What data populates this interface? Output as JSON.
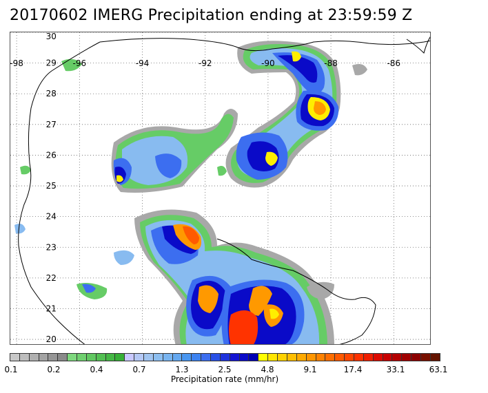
{
  "title": "20170602 IMERG Precipitation ending at 23:59:59 Z",
  "map": {
    "lon_range": [
      -98.2,
      -84.8
    ],
    "lat_range": [
      19.8,
      30.0
    ],
    "lon_labels": [
      "-98",
      "-96",
      "-94",
      "-92",
      "-90",
      "-88",
      "-86"
    ],
    "lon_values": [
      -98,
      -96,
      -94,
      -92,
      -90,
      -88,
      -86
    ],
    "lat_labels": [
      "30",
      "29",
      "28",
      "27",
      "26",
      "25",
      "24",
      "23",
      "22",
      "21",
      "20"
    ],
    "lat_values": [
      30,
      29,
      28,
      27,
      26,
      25,
      24,
      23,
      22,
      21,
      20
    ],
    "grid": "dotted",
    "coastline_color": "#000000"
  },
  "colorbar": {
    "label": "Precipitation rate (mm/hr)",
    "tick_labels": [
      "0.1",
      "0.2",
      "0.4",
      "0.7",
      "1.3",
      "2.5",
      "4.8",
      "9.1",
      "17.4",
      "33.1",
      "63.1"
    ],
    "colors": [
      "#c8c8c8",
      "#bdbdbd",
      "#b0b0b0",
      "#a3a3a3",
      "#969696",
      "#8a8a8a",
      "#7ed87e",
      "#6fd06f",
      "#61c861",
      "#53c053",
      "#45b845",
      "#37b037",
      "#c8c8ff",
      "#b4c8f5",
      "#a0c4f0",
      "#8cbef0",
      "#78b4f0",
      "#64a8f0",
      "#4896f0",
      "#3c82f0",
      "#3c6ef0",
      "#2850e6",
      "#1e32dc",
      "#1414d2",
      "#0a0ac8",
      "#0000b4",
      "#ffff00",
      "#ffe600",
      "#ffd200",
      "#ffbe00",
      "#ffaa00",
      "#ff9600",
      "#ff8200",
      "#ff6e00",
      "#ff5a00",
      "#ff4600",
      "#ff3200",
      "#f01e00",
      "#dc0a00",
      "#c80000",
      "#b40000",
      "#a00000",
      "#8c0000",
      "#781000",
      "#641400"
    ]
  },
  "features": {
    "colors": {
      "gray": "#a8a8a8",
      "green": "#66cc66",
      "light_blue": "#88bbf0",
      "blue": "#3c6ef0",
      "dark_blue": "#0a0ac8",
      "yellow": "#ffee00",
      "orange": "#ff9900",
      "red": "#ff3300"
    }
  }
}
